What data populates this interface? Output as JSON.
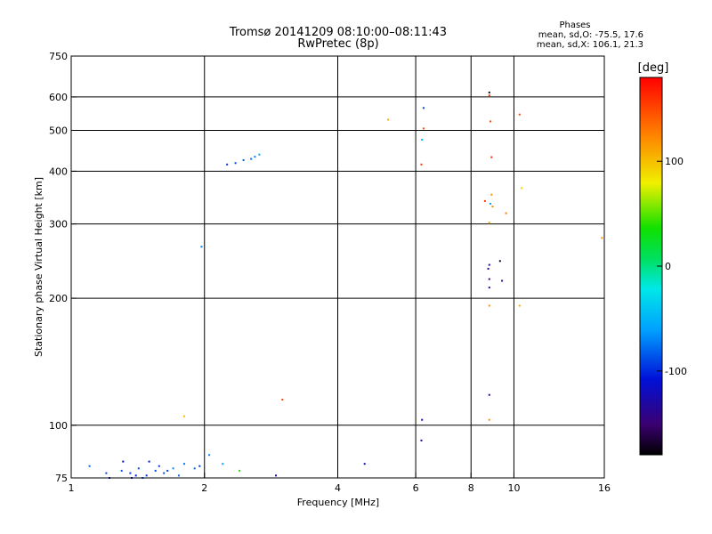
{
  "chart_data": {
    "type": "scatter",
    "title": "Tromsø 20141209 08:10:00–08:11:43",
    "subtitle": "RwPretec (8p)",
    "stats": {
      "heading": "Phases",
      "line_o": "mean, sd,O: -75.5, 17.6",
      "line_x": "mean, sd,X: 106.1, 21.3"
    },
    "xlabel": "Frequency [MHz]",
    "ylabel": "Stationary phase Virtual Height [km]",
    "xscale": "log",
    "yscale": "log",
    "xlim": [
      1,
      16
    ],
    "ylim": [
      75,
      750
    ],
    "xticks": [
      1,
      2,
      4,
      6,
      8,
      10,
      16
    ],
    "xtick_labels": [
      "1",
      "2",
      "4",
      "6",
      "8",
      "10",
      "16"
    ],
    "yticks": [
      75,
      100,
      200,
      300,
      400,
      500,
      600,
      750
    ],
    "ytick_labels": [
      "75",
      "100",
      "200",
      "300",
      "400",
      "500",
      "600",
      "750"
    ],
    "grid": true,
    "colorbar": {
      "label": "[deg]",
      "range": [
        -180,
        180
      ],
      "ticks": [
        100,
        0,
        -100
      ],
      "tick_labels": [
        "100",
        "0",
        "-100"
      ]
    },
    "points": [
      [
        1.1,
        80,
        -80
      ],
      [
        1.2,
        77,
        -90
      ],
      [
        1.22,
        75,
        -100
      ],
      [
        1.3,
        78,
        -85
      ],
      [
        1.31,
        82,
        -110
      ],
      [
        1.36,
        77,
        -95
      ],
      [
        1.37,
        75,
        -100
      ],
      [
        1.4,
        76,
        -105
      ],
      [
        1.42,
        79,
        -90
      ],
      [
        1.45,
        75,
        -85
      ],
      [
        1.48,
        76,
        -100
      ],
      [
        1.5,
        82,
        -110
      ],
      [
        1.55,
        78,
        -90
      ],
      [
        1.58,
        80,
        -95
      ],
      [
        1.62,
        77,
        -88
      ],
      [
        1.65,
        78,
        -92
      ],
      [
        1.7,
        79,
        -70
      ],
      [
        1.75,
        76,
        -80
      ],
      [
        1.8,
        81,
        -75
      ],
      [
        1.9,
        79,
        -80
      ],
      [
        1.95,
        80,
        -95
      ],
      [
        2.05,
        85,
        -70
      ],
      [
        2.2,
        81,
        -60
      ],
      [
        2.4,
        78,
        40
      ],
      [
        2.9,
        76,
        -120
      ],
      [
        3.0,
        115,
        150
      ],
      [
        4.6,
        81,
        -110
      ],
      [
        1.8,
        105,
        100
      ],
      [
        1.97,
        265,
        -70
      ],
      [
        2.25,
        415,
        -100
      ],
      [
        2.35,
        418,
        -90
      ],
      [
        2.45,
        425,
        -85
      ],
      [
        2.55,
        428,
        -80
      ],
      [
        2.6,
        433,
        -70
      ],
      [
        2.66,
        438,
        -60
      ],
      [
        6.25,
        505,
        150
      ],
      [
        6.2,
        475,
        -50
      ],
      [
        6.18,
        415,
        160
      ],
      [
        6.25,
        565,
        -90
      ],
      [
        6.2,
        103,
        -120
      ],
      [
        6.18,
        92,
        -130
      ],
      [
        8.6,
        340,
        160
      ],
      [
        8.8,
        615,
        -170
      ],
      [
        8.8,
        605,
        160
      ],
      [
        8.85,
        525,
        150
      ],
      [
        8.9,
        432,
        160
      ],
      [
        8.9,
        352,
        120
      ],
      [
        8.85,
        335,
        -60
      ],
      [
        8.95,
        330,
        120
      ],
      [
        8.8,
        302,
        110
      ],
      [
        8.8,
        240,
        -120
      ],
      [
        8.75,
        235,
        -140
      ],
      [
        8.8,
        222,
        -150
      ],
      [
        8.8,
        212,
        -130
      ],
      [
        8.8,
        192,
        120
      ],
      [
        8.8,
        118,
        -130
      ],
      [
        8.8,
        103,
        120
      ],
      [
        9.3,
        245,
        -170
      ],
      [
        9.4,
        220,
        -140
      ],
      [
        9.6,
        318,
        130
      ],
      [
        10.3,
        545,
        150
      ],
      [
        10.4,
        365,
        90
      ],
      [
        10.3,
        192,
        110
      ],
      [
        15.8,
        278,
        120
      ],
      [
        5.2,
        530,
        110
      ]
    ]
  }
}
